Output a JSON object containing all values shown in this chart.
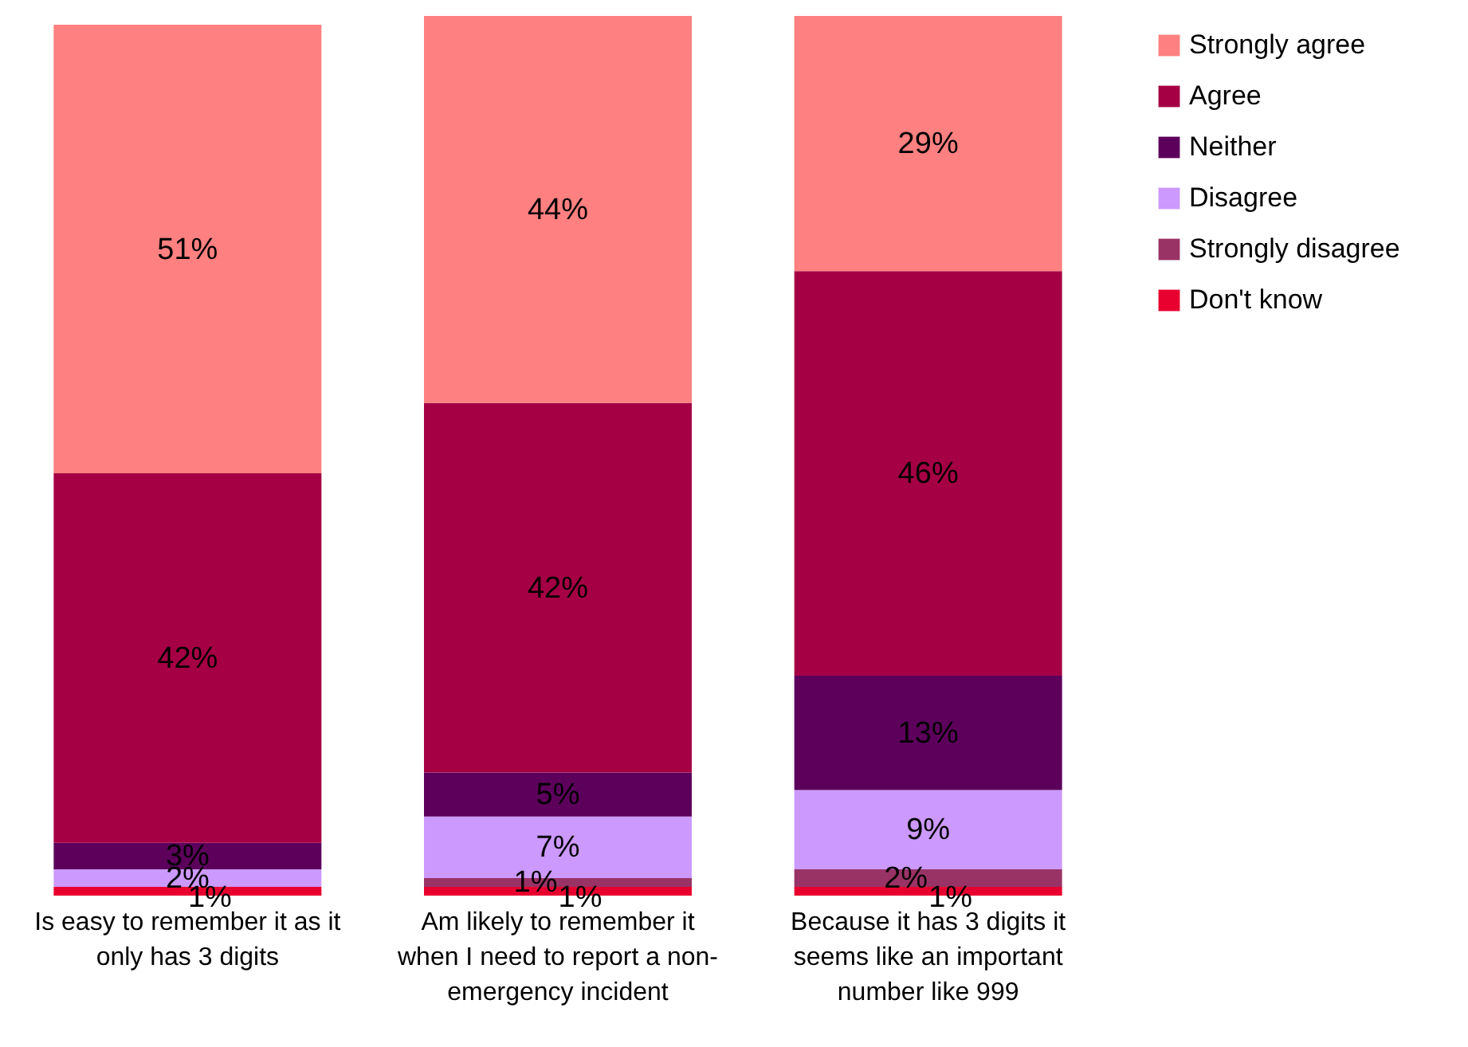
{
  "chart_data": {
    "type": "bar",
    "stacked": true,
    "legend": "right",
    "categories": [
      "Is easy to remember it as it only has 3 digits",
      "Am likely to remember it when I need to report a non-emergency incident",
      "Because it has 3 digits it seems like an important number like 999"
    ],
    "series": [
      {
        "name": "Don't know",
        "color": "#e8002f",
        "values": [
          1,
          1,
          1
        ],
        "value_labels": [
          "1%",
          "1%",
          "1%"
        ]
      },
      {
        "name": "Strongly disagree",
        "color": "#993366",
        "values": [
          0,
          1,
          2
        ],
        "value_labels": [
          null,
          "1%",
          "2%"
        ]
      },
      {
        "name": "Disagree",
        "color": "#cc99ff",
        "values": [
          2,
          7,
          9
        ],
        "value_labels": [
          "2%",
          "7%",
          "9%"
        ]
      },
      {
        "name": "Neither",
        "color": "#5c005c",
        "values": [
          3,
          5,
          13
        ],
        "value_labels": [
          "3%",
          "5%",
          "13%"
        ]
      },
      {
        "name": "Agree",
        "color": "#a50044",
        "values": [
          42,
          42,
          46
        ],
        "value_labels": [
          "42%",
          "42%",
          "46%"
        ]
      },
      {
        "name": "Strongly agree",
        "color": "#ff8080",
        "values": [
          51,
          44,
          29
        ],
        "value_labels": [
          "51%",
          "44%",
          "29%"
        ]
      }
    ]
  }
}
